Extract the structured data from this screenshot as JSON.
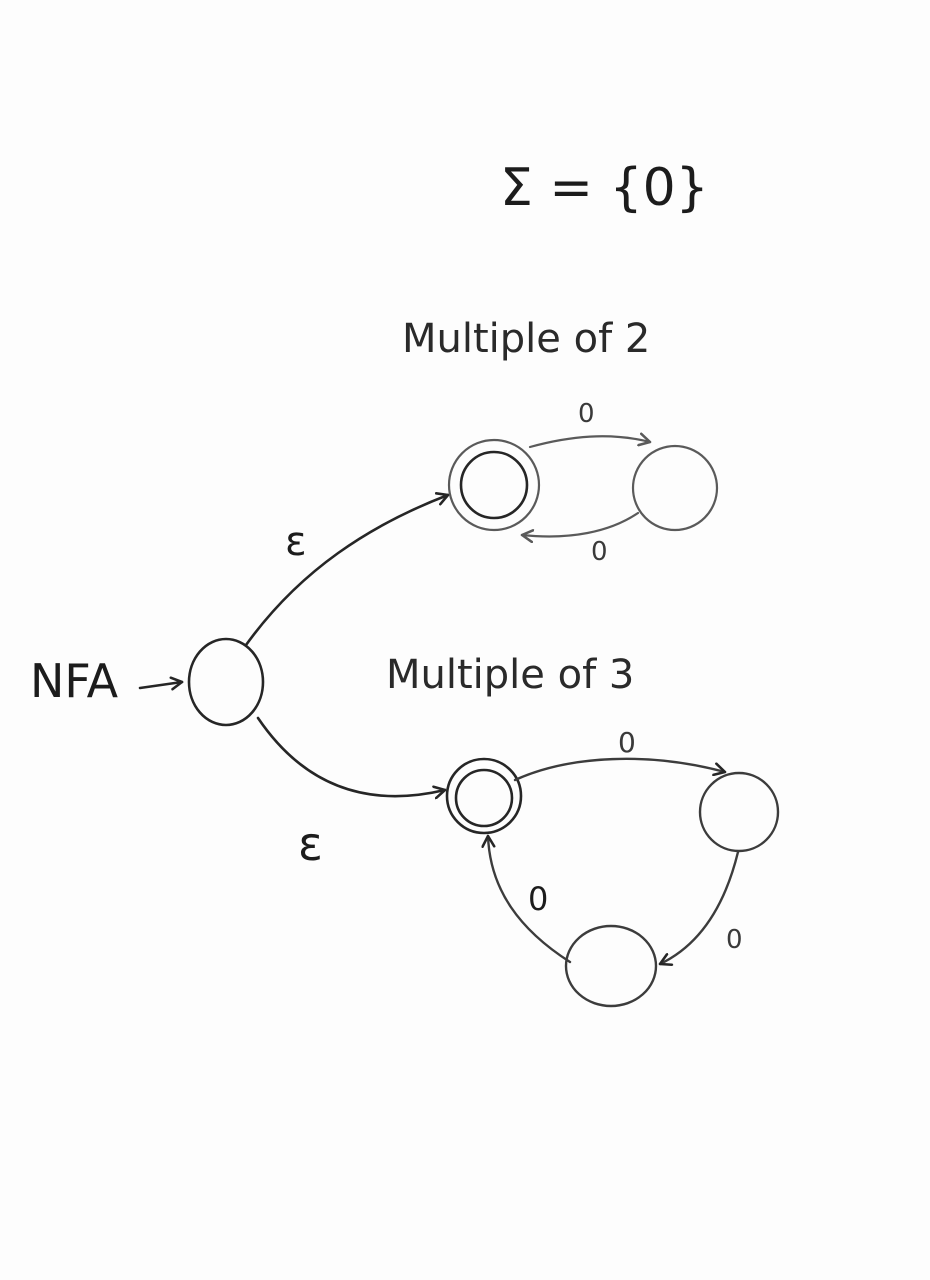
{
  "alphabet_label": "Σ = {0}",
  "start_label": "NFA",
  "branch_top_title": "Multiple of 2",
  "branch_bottom_title": "Multiple of 3",
  "epsilon_top": "ε",
  "epsilon_bottom": "ε",
  "top_edge_forward": "0",
  "top_edge_back": "0",
  "bottom_edge_1": "0",
  "bottom_edge_2": "0",
  "bottom_edge_3": "0"
}
